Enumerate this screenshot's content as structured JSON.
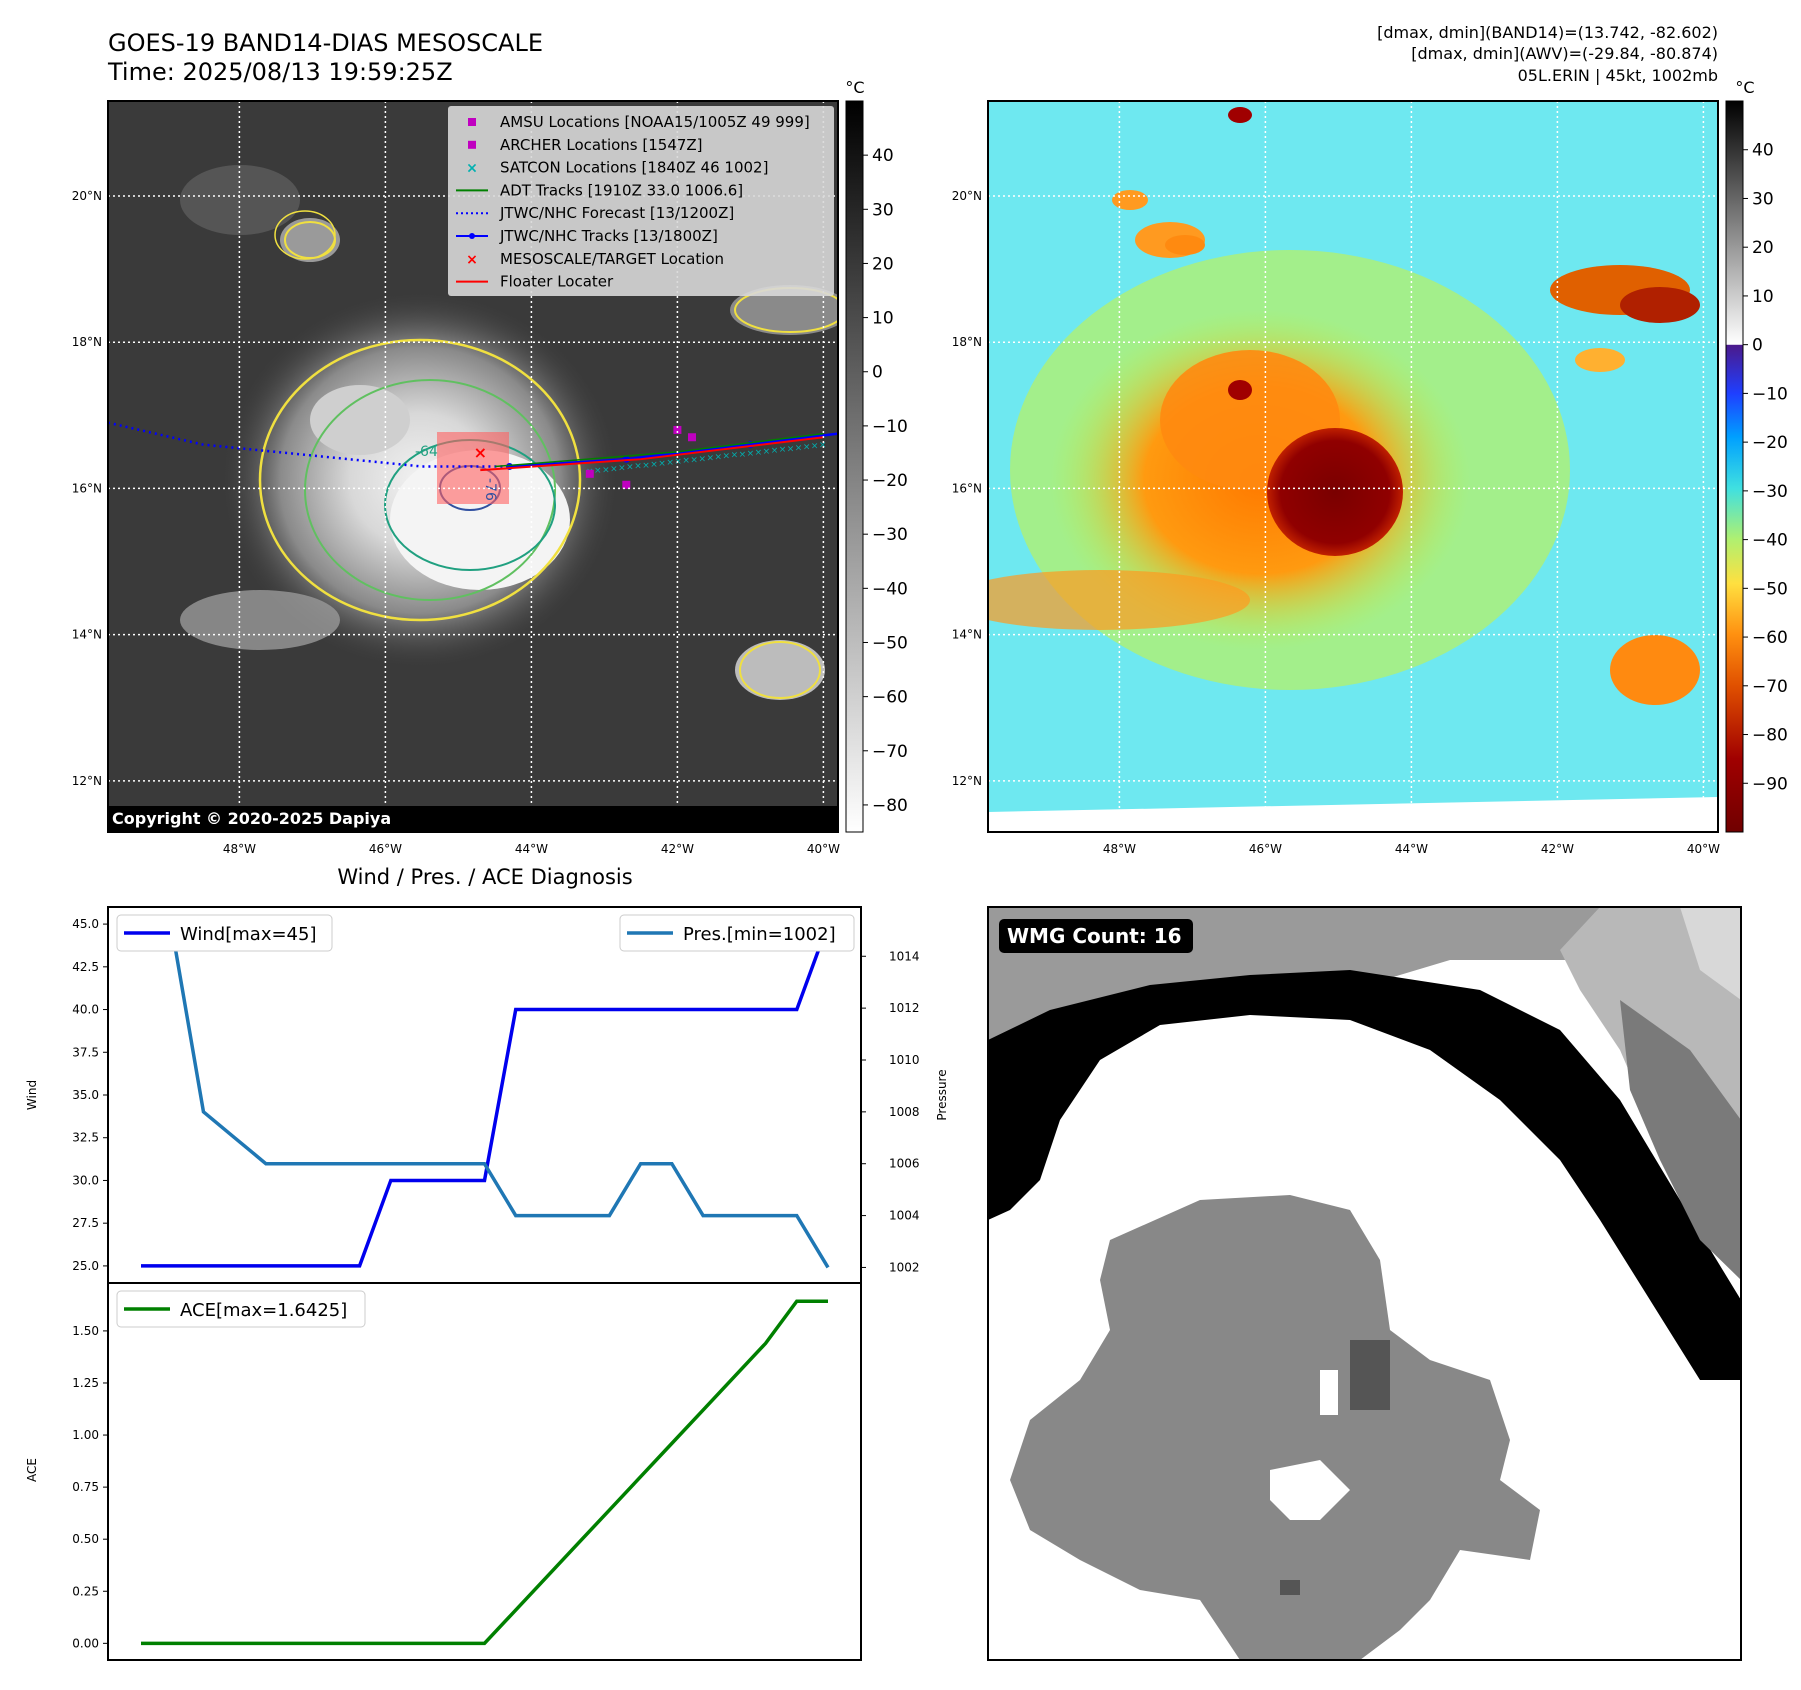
{
  "header": {
    "title_line1": "GOES-19 BAND14-DIAS MESOSCALE",
    "title_line2": "Time: 2025/08/13 19:59:25Z",
    "stats_line1": "[dmax, dmin](BAND14)=(13.742, -82.602)",
    "stats_line2": "[dmax, dmin](AWV)=(-29.84, -80.874)",
    "stats_line3": "05L.ERIN | 45kt, 1002mb"
  },
  "maps": {
    "lat_ticks": [
      "20°N",
      "18°N",
      "16°N",
      "14°N",
      "12°N"
    ],
    "lat_values": [
      20,
      18,
      16,
      14,
      12
    ],
    "lon_ticks": [
      "48°W",
      "46°W",
      "44°W",
      "42°W",
      "40°W"
    ],
    "lon_values": [
      -48,
      -46,
      -44,
      -42,
      -40
    ],
    "lat_range": [
      11.3,
      21.3
    ],
    "lon_range": [
      -49.8,
      -39.8
    ],
    "copyright": "Copyright © 2020-2025 Dapiya",
    "contour_label_1": "-64",
    "contour_label_2": "-76"
  },
  "legend": {
    "items": [
      {
        "label": "AMSU Locations [NOAA15/1005Z 49 999]",
        "marker": "square",
        "color": "#c000c0"
      },
      {
        "label": "ARCHER Locations [1547Z]",
        "marker": "square",
        "color": "#c000c0"
      },
      {
        "label": "SATCON Locations [1840Z 46 1002]",
        "marker": "x",
        "color": "#00b0b0"
      },
      {
        "label": "ADT Tracks [1910Z 33.0 1006.6]",
        "marker": "line",
        "color": "#008000"
      },
      {
        "label": "JTWC/NHC Forecast [13/1200Z]",
        "marker": "dotted",
        "color": "#0000ff"
      },
      {
        "label": "JTWC/NHC Tracks [13/1800Z]",
        "marker": "line-dot",
        "color": "#0000ff"
      },
      {
        "label": "MESOSCALE/TARGET Location",
        "marker": "x",
        "color": "#ff0000"
      },
      {
        "label": "Floater Locater",
        "marker": "line",
        "color": "#ff0000"
      }
    ]
  },
  "colorbar1": {
    "unit": "°C",
    "ticks": [
      "40",
      "30",
      "20",
      "10",
      "0",
      "−10",
      "−20",
      "−30",
      "−40",
      "−50",
      "−60",
      "−70",
      "−80"
    ],
    "values": [
      40,
      30,
      20,
      10,
      0,
      -10,
      -20,
      -30,
      -40,
      -50,
      -60,
      -70,
      -80
    ],
    "range": [
      -85,
      50
    ]
  },
  "colorbar2": {
    "unit": "°C",
    "ticks": [
      "40",
      "30",
      "20",
      "10",
      "0",
      "−10",
      "−20",
      "−30",
      "−40",
      "−50",
      "−60",
      "−70",
      "−80",
      "−90"
    ],
    "values": [
      40,
      30,
      20,
      10,
      0,
      -10,
      -20,
      -30,
      -40,
      -50,
      -60,
      -70,
      -80,
      -90
    ],
    "range": [
      -100,
      50
    ]
  },
  "wmg": {
    "label": "WMG Count: 16"
  },
  "chart_data": [
    {
      "type": "line",
      "title": "Wind / Pres. / ACE Diagnosis",
      "ylabel": "Wind",
      "y2label": "Pressure",
      "x": [
        0,
        1,
        2,
        3,
        4,
        5,
        6,
        7,
        8,
        9,
        10,
        11,
        12,
        13,
        14,
        15,
        16,
        17,
        18,
        19,
        20,
        21,
        22
      ],
      "ylim": [
        24.0,
        46.0
      ],
      "y2lim": [
        1001.4,
        1015.9
      ],
      "yticks": [
        "45.0",
        "42.5",
        "40.0",
        "37.5",
        "35.0",
        "32.5",
        "30.0",
        "27.5",
        "25.0"
      ],
      "ytick_values": [
        45.0,
        42.5,
        40.0,
        37.5,
        35.0,
        32.5,
        30.0,
        27.5,
        25.0
      ],
      "y2ticks": [
        "1014",
        "1012",
        "1010",
        "1008",
        "1006",
        "1004",
        "1002"
      ],
      "y2tick_values": [
        1014,
        1012,
        1010,
        1008,
        1006,
        1004,
        1002
      ],
      "series": [
        {
          "name": "Wind[max=45]",
          "axis": "left",
          "color": "#0000ee",
          "values": [
            25,
            25,
            25,
            25,
            25,
            25,
            25,
            25,
            30,
            30,
            30,
            30,
            40,
            40,
            40,
            40,
            40,
            40,
            40,
            40,
            40,
            40,
            45
          ]
        },
        {
          "name": "Pres.[min=1002]",
          "axis": "right",
          "color": "#1f77b4",
          "values": [
            1015,
            1015,
            1008,
            1007,
            1006,
            1006,
            1006,
            1006,
            1006,
            1006,
            1006,
            1006,
            1004,
            1004,
            1004,
            1004,
            1006,
            1006,
            1004,
            1004,
            1004,
            1004,
            1002
          ]
        }
      ]
    },
    {
      "type": "line",
      "ylabel": "ACE",
      "x": [
        0,
        1,
        2,
        3,
        4,
        5,
        6,
        7,
        8,
        9,
        10,
        11,
        12,
        13,
        14,
        15,
        16,
        17,
        18,
        19,
        20,
        21,
        22
      ],
      "ylim": [
        -0.08,
        1.73
      ],
      "yticks": [
        "1.50",
        "1.25",
        "1.00",
        "0.75",
        "0.50",
        "0.25",
        "0.00"
      ],
      "ytick_values": [
        1.5,
        1.25,
        1.0,
        0.75,
        0.5,
        0.25,
        0.0
      ],
      "series": [
        {
          "name": "ACE[max=1.6425]",
          "color": "#008000",
          "values": [
            0,
            0,
            0,
            0,
            0,
            0,
            0,
            0,
            0,
            0,
            0,
            0,
            0.16,
            0.32,
            0.48,
            0.64,
            0.8,
            0.96,
            1.12,
            1.28,
            1.44,
            1.6425,
            1.6425
          ]
        }
      ]
    }
  ]
}
